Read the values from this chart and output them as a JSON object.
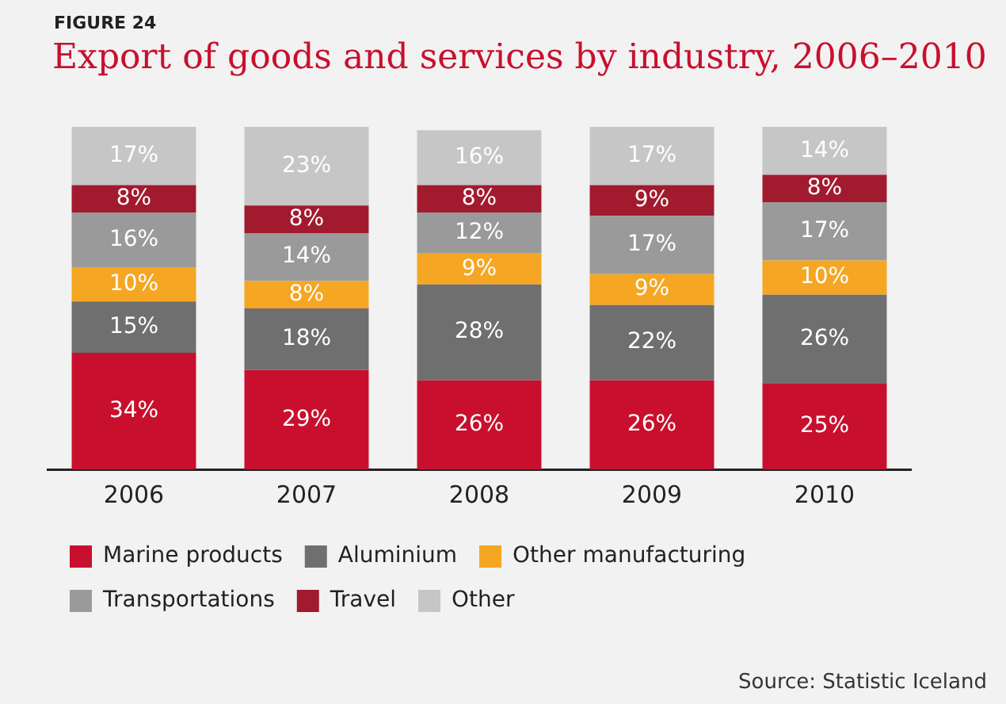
{
  "chart_data": {
    "type": "bar",
    "subtitle": "FIGURE 24",
    "title": "Export of goods and services by industry, 2006–2010",
    "categories": [
      "2006",
      "2007",
      "2008",
      "2009",
      "2010"
    ],
    "stacked": true,
    "tick_labels": "x",
    "legend": "bottom",
    "grid": false,
    "series": [
      {
        "name": "Marine products",
        "color": "#c8102e",
        "values": [
          34,
          29,
          26,
          26,
          25
        ],
        "value_labels": [
          "34%",
          "29%",
          "26%",
          "26%",
          "25%"
        ]
      },
      {
        "name": "Aluminium",
        "color": "#6f6f70",
        "values": [
          15,
          18,
          28,
          22,
          26
        ],
        "value_labels": [
          "15%",
          "18%",
          "28%",
          "22%",
          "26%"
        ]
      },
      {
        "name": "Other manufacturing",
        "color": "#f5a623",
        "values": [
          10,
          8,
          9,
          9,
          10
        ],
        "value_labels": [
          "10%",
          "8%",
          "9%",
          "9%",
          "10%"
        ]
      },
      {
        "name": "Transportations",
        "color": "#9a9a9b",
        "values": [
          16,
          14,
          12,
          17,
          17
        ],
        "value_labels": [
          "16%",
          "14%",
          "12%",
          "17%",
          "17%"
        ]
      },
      {
        "name": "Travel",
        "color": "#a21a2e",
        "values": [
          8,
          8,
          8,
          9,
          8
        ],
        "value_labels": [
          "8%",
          "8%",
          "8%",
          "9%",
          "8%"
        ]
      },
      {
        "name": "Other",
        "color": "#c6c6c7",
        "values": [
          17,
          23,
          16,
          17,
          14
        ],
        "value_labels": [
          "17%",
          "23%",
          "16%",
          "17%",
          "14%"
        ]
      }
    ],
    "annotations": [
      "Source: Statistic Iceland"
    ]
  }
}
